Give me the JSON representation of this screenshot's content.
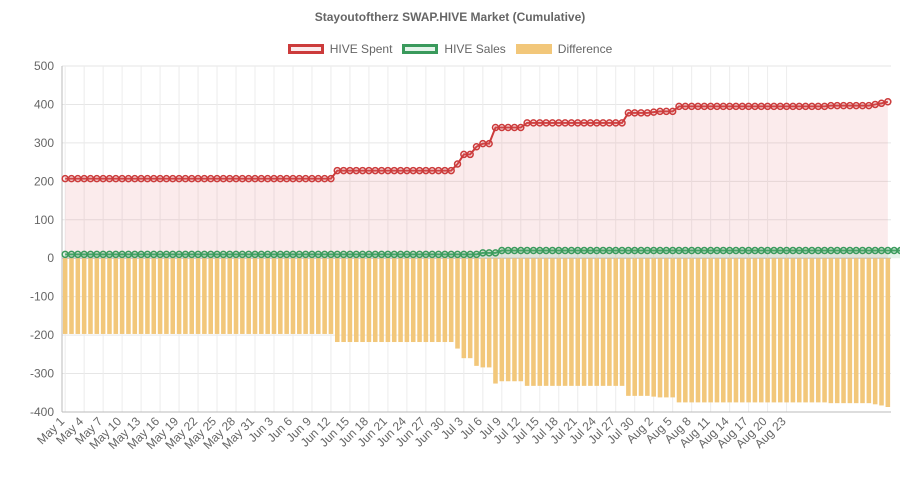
{
  "chart_data": {
    "type": "line",
    "title": "Stayoutoftherz SWAP.HIVE Market (Cumulative)",
    "ylim": [
      -400,
      500
    ],
    "y_ticks": [
      500,
      400,
      300,
      200,
      100,
      0,
      -100,
      -200,
      -300,
      -400
    ],
    "y_tick_labels": [
      "500",
      "400",
      "300",
      "200",
      "100",
      "0",
      "-100",
      "-200",
      "-300",
      "-400"
    ],
    "x_tick_labels": [
      "May 1",
      "May 4",
      "May 7",
      "May 10",
      "May 13",
      "May 16",
      "May 19",
      "May 22",
      "May 25",
      "May 28",
      "May 31",
      "Jun 3",
      "Jun 6",
      "Jun 9",
      "Jun 12",
      "Jun 15",
      "Jun 18",
      "Jun 21",
      "Jun 24",
      "Jun 27",
      "Jun 30",
      "Jul 3",
      "Jul 6",
      "Jul 9",
      "Jul 12",
      "Jul 15",
      "Jul 18",
      "Jul 21",
      "Jul 24",
      "Jul 27",
      "Jul 30",
      "Aug 2",
      "Aug 5",
      "Aug 8",
      "Aug 11",
      "Aug 14",
      "Aug 17",
      "Aug 20",
      "Aug 23"
    ],
    "grid": true,
    "legend_position": "top",
    "series": [
      {
        "name": "HIVE Spent",
        "type": "line",
        "color": "#cc3b3b",
        "fill": "rgba(225,120,130,0.15)",
        "values": [
          207,
          207,
          207,
          207,
          207,
          207,
          207,
          207,
          207,
          207,
          207,
          207,
          207,
          207,
          207,
          207,
          207,
          207,
          207,
          207,
          207,
          207,
          207,
          207,
          207,
          207,
          207,
          207,
          207,
          207,
          207,
          207,
          207,
          207,
          207,
          207,
          207,
          207,
          207,
          207,
          207,
          207,
          207,
          228,
          228,
          228,
          228,
          228,
          228,
          228,
          228,
          228,
          228,
          228,
          228,
          228,
          228,
          228,
          228,
          228,
          228,
          228,
          245,
          270,
          270,
          290,
          298,
          298,
          340,
          340,
          340,
          340,
          340,
          352,
          352,
          352,
          352,
          352,
          352,
          352,
          352,
          352,
          352,
          352,
          352,
          352,
          352,
          352,
          352,
          378,
          378,
          378,
          378,
          380,
          382,
          382,
          382,
          395,
          395,
          395,
          395,
          395,
          395,
          395,
          395,
          395,
          395,
          395,
          395,
          395,
          395,
          395,
          395,
          395,
          395,
          395,
          395,
          395,
          395,
          395,
          395,
          397,
          397,
          397,
          397,
          397,
          397,
          397,
          400,
          403,
          407
        ]
      },
      {
        "name": "HIVE Sales",
        "type": "line",
        "color": "#3a9a5c",
        "fill": "rgba(120,200,150,0.2)",
        "values": [
          10,
          10,
          10,
          10,
          10,
          10,
          10,
          10,
          10,
          10,
          10,
          10,
          10,
          10,
          10,
          10,
          10,
          10,
          10,
          10,
          10,
          10,
          10,
          10,
          10,
          10,
          10,
          10,
          10,
          10,
          10,
          10,
          10,
          10,
          10,
          10,
          10,
          10,
          10,
          10,
          10,
          10,
          10,
          10,
          10,
          10,
          10,
          10,
          10,
          10,
          10,
          10,
          10,
          10,
          10,
          10,
          10,
          10,
          10,
          10,
          10,
          10,
          10,
          10,
          10,
          10,
          14,
          14,
          14,
          20,
          20,
          20,
          20,
          20,
          20,
          20,
          20,
          20,
          20,
          20,
          20,
          20,
          20,
          20,
          20,
          20,
          20,
          20,
          20,
          20,
          20,
          20,
          20,
          20,
          20,
          20,
          20,
          20,
          20,
          20,
          20,
          20,
          20,
          20,
          20,
          20,
          20,
          20,
          20,
          20,
          20,
          20,
          20,
          20,
          20,
          20,
          20,
          20,
          20,
          20,
          20,
          20,
          20,
          20,
          20,
          20,
          20,
          20,
          20,
          20,
          20,
          20,
          20,
          20,
          20,
          20,
          20
        ]
      },
      {
        "name": "Difference",
        "type": "bar",
        "color": "#f2c77a",
        "values": [
          -197,
          -197,
          -197,
          -197,
          -197,
          -197,
          -197,
          -197,
          -197,
          -197,
          -197,
          -197,
          -197,
          -197,
          -197,
          -197,
          -197,
          -197,
          -197,
          -197,
          -197,
          -197,
          -197,
          -197,
          -197,
          -197,
          -197,
          -197,
          -197,
          -197,
          -197,
          -197,
          -197,
          -197,
          -197,
          -197,
          -197,
          -197,
          -197,
          -197,
          -197,
          -197,
          -197,
          -218,
          -218,
          -218,
          -218,
          -218,
          -218,
          -218,
          -218,
          -218,
          -218,
          -218,
          -218,
          -218,
          -218,
          -218,
          -218,
          -218,
          -218,
          -218,
          -235,
          -260,
          -260,
          -280,
          -284,
          -284,
          -326,
          -320,
          -320,
          -320,
          -320,
          -332,
          -332,
          -332,
          -332,
          -332,
          -332,
          -332,
          -332,
          -332,
          -332,
          -332,
          -332,
          -332,
          -332,
          -332,
          -332,
          -358,
          -358,
          -358,
          -358,
          -360,
          -362,
          -362,
          -362,
          -375,
          -375,
          -375,
          -375,
          -375,
          -375,
          -375,
          -375,
          -375,
          -375,
          -375,
          -375,
          -375,
          -375,
          -375,
          -375,
          -375,
          -375,
          -375,
          -375,
          -375,
          -375,
          -375,
          -375,
          -377,
          -377,
          -377,
          -377,
          -377,
          -377,
          -377,
          -380,
          -383,
          -387
        ]
      }
    ]
  }
}
